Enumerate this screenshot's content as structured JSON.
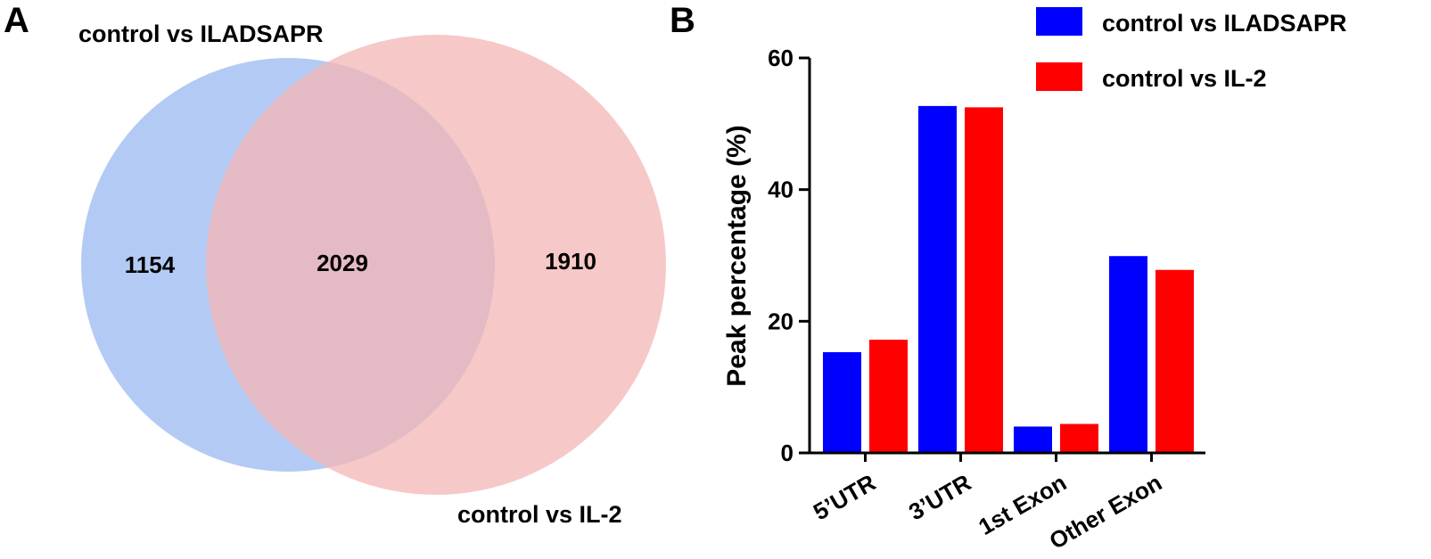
{
  "panel_a": {
    "label": "A",
    "set1_label": "control vs ILADSAPR",
    "set2_label": "control vs IL-2",
    "only_set1": "1154",
    "intersection": "2029",
    "only_set2": "1910",
    "colors": {
      "set1": "#a9c4f2",
      "set2": "#f4b6b6"
    }
  },
  "panel_b": {
    "label": "B"
  },
  "chart_data": {
    "type": "bar",
    "title": "",
    "xlabel": "",
    "ylabel": "Peak percentage (%)",
    "ylim": [
      0,
      60
    ],
    "yticks": [
      0,
      20,
      40,
      60
    ],
    "categories": [
      "5’UTR",
      "3’UTR",
      "1st Exon",
      "Other Exon"
    ],
    "series": [
      {
        "name": "control vs ILADSAPR",
        "color": "#0000ff",
        "values": [
          15.3,
          52.7,
          4.0,
          29.9
        ]
      },
      {
        "name": "control vs IL-2",
        "color": "#ff0000",
        "values": [
          17.2,
          52.5,
          4.4,
          27.8
        ]
      }
    ],
    "legend_position": "top-right"
  }
}
